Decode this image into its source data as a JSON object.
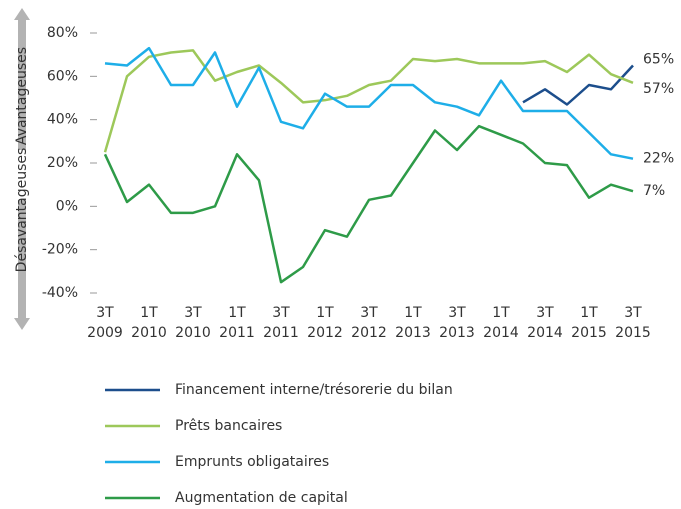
{
  "chart_data": {
    "type": "line",
    "y_label_top": "Avantageuses",
    "y_label_bottom": "Désavantageuses",
    "categories": [
      [
        "3T",
        "2009"
      ],
      null,
      [
        "1T",
        "2010"
      ],
      null,
      [
        "3T",
        "2010"
      ],
      null,
      [
        "1T",
        "2011"
      ],
      null,
      [
        "3T",
        "2011"
      ],
      null,
      [
        "1T",
        "2012"
      ],
      null,
      [
        "3T",
        "2012"
      ],
      null,
      [
        "1T",
        "2013"
      ],
      null,
      [
        "3T",
        "2013"
      ],
      null,
      [
        "1T",
        "2014"
      ],
      null,
      [
        "3T",
        "2014"
      ],
      null,
      [
        "1T",
        "2015"
      ],
      null,
      [
        "3T",
        "2015"
      ]
    ],
    "ylim": [
      -40,
      80
    ],
    "yticks": [
      {
        "value": -40,
        "label": "-40%"
      },
      {
        "value": -20,
        "label": "-20%"
      },
      {
        "value": 0,
        "label": "0%"
      },
      {
        "value": 20,
        "label": "20%"
      },
      {
        "value": 40,
        "label": "40%"
      },
      {
        "value": 60,
        "label": "60%"
      },
      {
        "value": 80,
        "label": "80%"
      }
    ],
    "series": [
      {
        "name": "Financement interne/trésorerie du bilan",
        "color": "#1c4e8c",
        "values": [
          null,
          null,
          null,
          null,
          null,
          null,
          null,
          null,
          null,
          null,
          null,
          null,
          null,
          null,
          null,
          null,
          null,
          null,
          null,
          48,
          54,
          47,
          56,
          54,
          65
        ],
        "value_labels": [
          null,
          null,
          null,
          null,
          null,
          null,
          null,
          null,
          null,
          null,
          null,
          null,
          null,
          null,
          null,
          null,
          null,
          null,
          null,
          null,
          null,
          null,
          null,
          null,
          "65%"
        ]
      },
      {
        "name": "Prêts bancaires",
        "color": "#9dc85a",
        "values": [
          25,
          60,
          69,
          71,
          72,
          58,
          62,
          65,
          57,
          48,
          49,
          51,
          56,
          58,
          68,
          67,
          68,
          66,
          66,
          66,
          67,
          62,
          70,
          61,
          57
        ],
        "value_labels": [
          null,
          null,
          null,
          null,
          null,
          null,
          null,
          null,
          null,
          null,
          null,
          null,
          null,
          null,
          null,
          null,
          null,
          null,
          null,
          null,
          null,
          null,
          null,
          null,
          "57%"
        ]
      },
      {
        "name": "Emprunts obligataires",
        "color": "#1eaee8",
        "values": [
          66,
          65,
          73,
          56,
          56,
          71,
          46,
          64,
          39,
          36,
          52,
          46,
          46,
          56,
          56,
          48,
          46,
          42,
          58,
          44,
          44,
          44,
          34,
          24,
          22
        ],
        "value_labels": [
          null,
          null,
          null,
          null,
          null,
          null,
          null,
          null,
          null,
          null,
          null,
          null,
          null,
          null,
          null,
          null,
          null,
          null,
          null,
          null,
          null,
          null,
          null,
          null,
          "22%"
        ]
      },
      {
        "name": "Augmentation de capital",
        "color": "#2e9b48",
        "values": [
          24,
          2,
          10,
          -3,
          -3,
          0,
          24,
          12,
          -35,
          -28,
          -11,
          -14,
          3,
          5,
          20,
          35,
          26,
          37,
          33,
          29,
          20,
          19,
          4,
          10,
          7
        ],
        "value_labels": [
          null,
          null,
          null,
          null,
          null,
          null,
          null,
          null,
          null,
          null,
          null,
          null,
          null,
          null,
          null,
          null,
          null,
          null,
          null,
          null,
          null,
          null,
          null,
          null,
          "7%"
        ]
      }
    ]
  }
}
